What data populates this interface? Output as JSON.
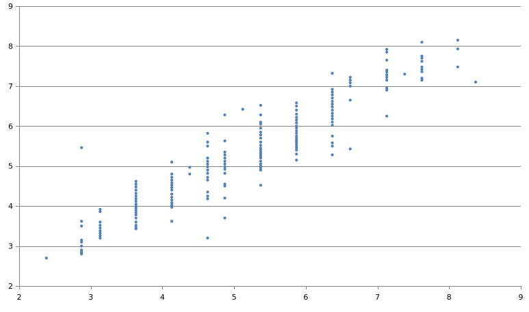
{
  "colors": {
    "point": "#4f81bd",
    "grid": "#868686",
    "axis": "#868686",
    "background": "#ffffff"
  },
  "chart_data": {
    "type": "scatter",
    "title": "",
    "xlabel": "",
    "ylabel": "",
    "xlim": [
      2,
      9
    ],
    "ylim": [
      2,
      9
    ],
    "xticks": [
      "2",
      "3",
      "4",
      "5",
      "6",
      "7",
      "8",
      "9"
    ],
    "yticks": [
      "2",
      "3",
      "4",
      "5",
      "6",
      "7",
      "8",
      "9"
    ],
    "grid": "horizontal",
    "legend": "none",
    "series": [
      {
        "points": [
          [
            2.38,
            2.7
          ],
          [
            2.87,
            5.46
          ],
          [
            2.87,
            3.62
          ],
          [
            2.87,
            3.5
          ],
          [
            2.87,
            3.15
          ],
          [
            2.87,
            3.1
          ],
          [
            2.87,
            3.0
          ],
          [
            2.87,
            2.9
          ],
          [
            2.87,
            2.85
          ],
          [
            2.87,
            2.82
          ],
          [
            2.87,
            2.8
          ],
          [
            3.13,
            3.92
          ],
          [
            3.13,
            3.86
          ],
          [
            3.13,
            3.6
          ],
          [
            3.13,
            3.52
          ],
          [
            3.13,
            3.45
          ],
          [
            3.13,
            3.38
          ],
          [
            3.13,
            3.32
          ],
          [
            3.13,
            3.26
          ],
          [
            3.13,
            3.2
          ],
          [
            3.63,
            4.62
          ],
          [
            3.63,
            4.55
          ],
          [
            3.63,
            4.48
          ],
          [
            3.63,
            4.4
          ],
          [
            3.63,
            4.32
          ],
          [
            3.63,
            4.25
          ],
          [
            3.63,
            4.18
          ],
          [
            3.63,
            4.12
          ],
          [
            3.63,
            4.05
          ],
          [
            3.63,
            4.0
          ],
          [
            3.63,
            3.95
          ],
          [
            3.63,
            3.9
          ],
          [
            3.63,
            3.84
          ],
          [
            3.63,
            3.78
          ],
          [
            3.63,
            3.7
          ],
          [
            3.63,
            3.6
          ],
          [
            3.63,
            3.52
          ],
          [
            3.63,
            3.47
          ],
          [
            3.63,
            3.43
          ],
          [
            4.13,
            5.1
          ],
          [
            4.13,
            4.8
          ],
          [
            4.13,
            4.72
          ],
          [
            4.13,
            4.65
          ],
          [
            4.13,
            4.58
          ],
          [
            4.13,
            4.52
          ],
          [
            4.13,
            4.46
          ],
          [
            4.13,
            4.4
          ],
          [
            4.13,
            4.3
          ],
          [
            4.13,
            4.22
          ],
          [
            4.13,
            4.15
          ],
          [
            4.13,
            4.08
          ],
          [
            4.13,
            4.02
          ],
          [
            4.13,
            3.97
          ],
          [
            4.13,
            3.62
          ],
          [
            4.38,
            4.97
          ],
          [
            4.38,
            4.8
          ],
          [
            4.63,
            5.82
          ],
          [
            4.63,
            5.6
          ],
          [
            4.63,
            5.5
          ],
          [
            4.63,
            5.2
          ],
          [
            4.63,
            5.12
          ],
          [
            4.63,
            5.05
          ],
          [
            4.63,
            4.98
          ],
          [
            4.63,
            4.9
          ],
          [
            4.63,
            4.82
          ],
          [
            4.63,
            4.72
          ],
          [
            4.63,
            4.65
          ],
          [
            4.63,
            4.35
          ],
          [
            4.63,
            4.25
          ],
          [
            4.63,
            4.18
          ],
          [
            4.63,
            3.2
          ],
          [
            4.87,
            6.28
          ],
          [
            4.87,
            5.63
          ],
          [
            4.87,
            5.35
          ],
          [
            4.87,
            5.28
          ],
          [
            4.87,
            5.2
          ],
          [
            4.87,
            5.12
          ],
          [
            4.87,
            5.05
          ],
          [
            4.87,
            4.98
          ],
          [
            4.87,
            4.92
          ],
          [
            4.87,
            4.82
          ],
          [
            4.87,
            4.55
          ],
          [
            4.87,
            4.5
          ],
          [
            4.87,
            4.2
          ],
          [
            4.87,
            3.7
          ],
          [
            5.12,
            6.42
          ],
          [
            5.37,
            6.52
          ],
          [
            5.37,
            6.28
          ],
          [
            5.37,
            6.1
          ],
          [
            5.37,
            6.05
          ],
          [
            5.37,
            5.95
          ],
          [
            5.37,
            5.85
          ],
          [
            5.37,
            5.78
          ],
          [
            5.37,
            5.7
          ],
          [
            5.37,
            5.6
          ],
          [
            5.37,
            5.52
          ],
          [
            5.37,
            5.45
          ],
          [
            5.37,
            5.4
          ],
          [
            5.37,
            5.35
          ],
          [
            5.37,
            5.3
          ],
          [
            5.37,
            5.25
          ],
          [
            5.37,
            5.2
          ],
          [
            5.37,
            5.12
          ],
          [
            5.37,
            5.05
          ],
          [
            5.37,
            5.0
          ],
          [
            5.37,
            4.95
          ],
          [
            5.37,
            4.9
          ],
          [
            5.37,
            4.52
          ],
          [
            5.87,
            6.58
          ],
          [
            5.87,
            6.5
          ],
          [
            5.87,
            6.4
          ],
          [
            5.87,
            6.3
          ],
          [
            5.87,
            6.22
          ],
          [
            5.87,
            6.15
          ],
          [
            5.87,
            6.08
          ],
          [
            5.87,
            6.0
          ],
          [
            5.87,
            5.95
          ],
          [
            5.87,
            5.88
          ],
          [
            5.87,
            5.82
          ],
          [
            5.87,
            5.75
          ],
          [
            5.87,
            5.7
          ],
          [
            5.87,
            5.65
          ],
          [
            5.87,
            5.6
          ],
          [
            5.87,
            5.55
          ],
          [
            5.87,
            5.5
          ],
          [
            5.87,
            5.45
          ],
          [
            5.87,
            5.4
          ],
          [
            5.87,
            5.3
          ],
          [
            5.87,
            5.15
          ],
          [
            6.37,
            7.32
          ],
          [
            6.37,
            6.92
          ],
          [
            6.37,
            6.85
          ],
          [
            6.37,
            6.78
          ],
          [
            6.37,
            6.7
          ],
          [
            6.37,
            6.62
          ],
          [
            6.37,
            6.55
          ],
          [
            6.37,
            6.48
          ],
          [
            6.37,
            6.4
          ],
          [
            6.37,
            6.32
          ],
          [
            6.37,
            6.25
          ],
          [
            6.37,
            6.18
          ],
          [
            6.37,
            6.1
          ],
          [
            6.37,
            6.02
          ],
          [
            6.37,
            5.75
          ],
          [
            6.37,
            5.58
          ],
          [
            6.37,
            5.5
          ],
          [
            6.37,
            5.28
          ],
          [
            6.62,
            7.22
          ],
          [
            6.62,
            7.15
          ],
          [
            6.62,
            7.08
          ],
          [
            6.62,
            7.0
          ],
          [
            6.62,
            6.65
          ],
          [
            6.62,
            5.43
          ],
          [
            7.13,
            7.92
          ],
          [
            7.13,
            7.85
          ],
          [
            7.13,
            7.65
          ],
          [
            7.13,
            7.4
          ],
          [
            7.13,
            7.35
          ],
          [
            7.13,
            7.28
          ],
          [
            7.13,
            7.22
          ],
          [
            7.13,
            7.15
          ],
          [
            7.13,
            6.95
          ],
          [
            7.13,
            6.9
          ],
          [
            7.13,
            6.25
          ],
          [
            7.38,
            7.3
          ],
          [
            7.62,
            8.1
          ],
          [
            7.62,
            7.75
          ],
          [
            7.62,
            7.7
          ],
          [
            7.62,
            7.62
          ],
          [
            7.62,
            7.48
          ],
          [
            7.62,
            7.42
          ],
          [
            7.62,
            7.36
          ],
          [
            7.62,
            7.2
          ],
          [
            7.62,
            7.15
          ],
          [
            8.12,
            8.15
          ],
          [
            8.12,
            7.93
          ],
          [
            8.12,
            7.48
          ],
          [
            8.37,
            7.1
          ]
        ]
      }
    ]
  }
}
